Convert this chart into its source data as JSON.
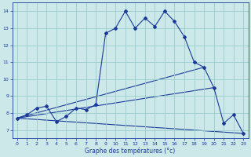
{
  "xlabel": "Graphe des températures (°c)",
  "background_color": "#cce8e8",
  "grid_color": "#99cccc",
  "line_color": "#1a3a9a",
  "xlim": [
    -0.5,
    23.5
  ],
  "ylim": [
    6.5,
    14.5
  ],
  "xticks": [
    0,
    1,
    2,
    3,
    4,
    5,
    6,
    7,
    8,
    9,
    10,
    11,
    12,
    13,
    14,
    15,
    16,
    17,
    18,
    19,
    20,
    21,
    22,
    23
  ],
  "yticks": [
    7,
    8,
    9,
    10,
    11,
    12,
    13,
    14
  ],
  "main_series": {
    "x": [
      0,
      1,
      2,
      3,
      4,
      5,
      6,
      7,
      8,
      9,
      10,
      11,
      12,
      13,
      14,
      15,
      16,
      17,
      18,
      19,
      20,
      21,
      22,
      23
    ],
    "y": [
      7.7,
      7.9,
      8.3,
      8.4,
      7.5,
      7.8,
      8.3,
      8.2,
      8.5,
      12.7,
      13.0,
      14.0,
      13.0,
      13.6,
      13.1,
      14.0,
      13.4,
      12.5,
      11.0,
      10.7,
      9.5,
      7.4,
      7.9,
      6.8
    ]
  },
  "straight_lines": [
    {
      "x": [
        0,
        23
      ],
      "y": [
        7.7,
        6.8
      ]
    },
    {
      "x": [
        0,
        20
      ],
      "y": [
        7.7,
        9.5
      ]
    },
    {
      "x": [
        0,
        19
      ],
      "y": [
        7.7,
        10.7
      ]
    }
  ],
  "figsize": [
    3.2,
    2.0
  ],
  "dpi": 100
}
